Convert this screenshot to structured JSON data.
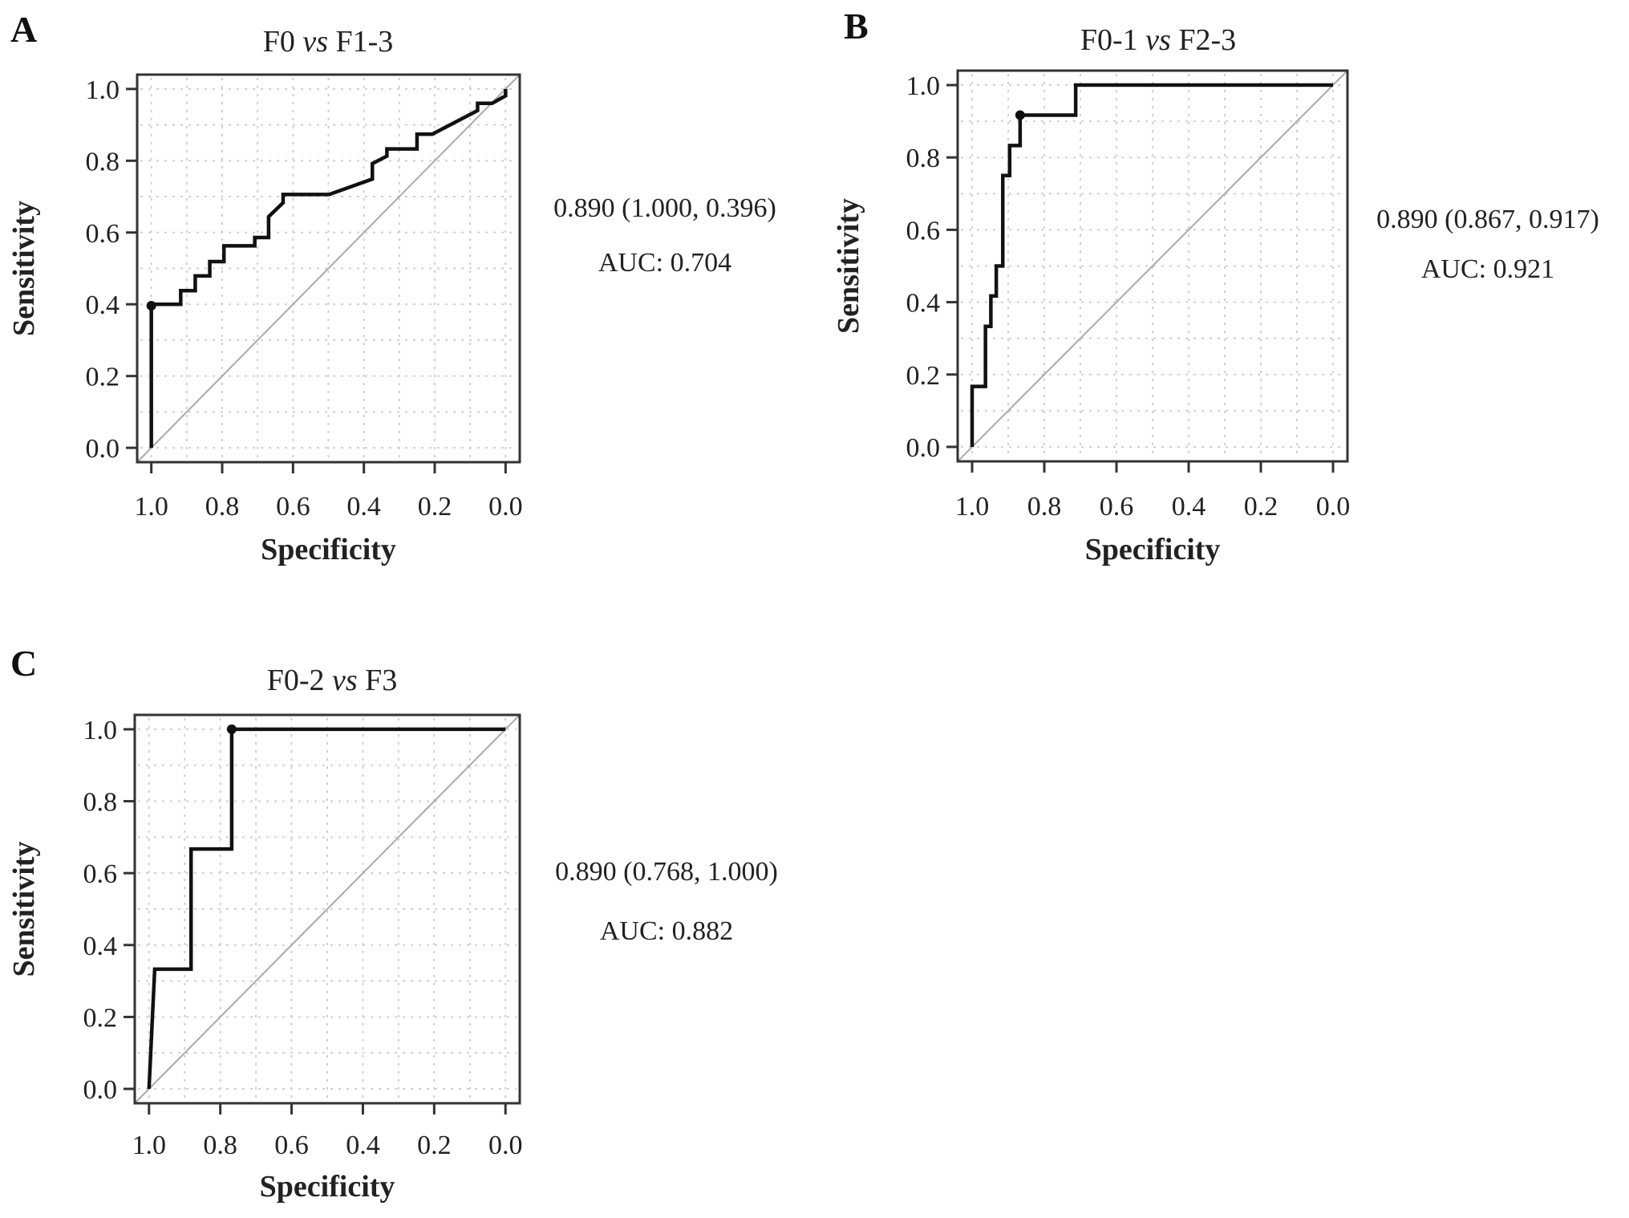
{
  "chart_data": [
    {
      "type": "line",
      "panel_label": "A",
      "title_parts": [
        "F0 ",
        "vs",
        " F1-3"
      ],
      "xlabel": "Specificity",
      "ylabel": "Sensitivity",
      "xlim": [
        1.04,
        -0.04
      ],
      "ylim": [
        -0.04,
        1.04
      ],
      "x_reversed": true,
      "grid": true,
      "xticks": [
        "1.0",
        "0.8",
        "0.6",
        "0.4",
        "0.2",
        "0.0"
      ],
      "yticks": [
        "0.0",
        "0.2",
        "0.4",
        "0.6",
        "0.8",
        "1.0"
      ],
      "threshold_label": "0.890 (1.000, 0.396)",
      "auc_label": "AUC: 0.704",
      "threshold_point": {
        "specificity": 1.0,
        "sensitivity": 0.396
      },
      "curve_color": "#111111",
      "reference_color": "#aaaaaa",
      "specificity": [
        1.0,
        1.0,
        0.917,
        0.917,
        0.876,
        0.876,
        0.835,
        0.835,
        0.795,
        0.795,
        0.708,
        0.708,
        0.669,
        0.669,
        0.628,
        0.628,
        0.498,
        0.376,
        0.376,
        0.335,
        0.335,
        0.25,
        0.25,
        0.207,
        0.079,
        0.079,
        0.038,
        0.0,
        0.0
      ],
      "sensitivity": [
        0.0,
        0.4,
        0.4,
        0.438,
        0.438,
        0.479,
        0.479,
        0.519,
        0.519,
        0.563,
        0.563,
        0.586,
        0.586,
        0.644,
        0.683,
        0.706,
        0.706,
        0.749,
        0.792,
        0.813,
        0.833,
        0.833,
        0.874,
        0.874,
        0.94,
        0.96,
        0.96,
        0.981,
        1.0
      ]
    },
    {
      "type": "line",
      "panel_label": "B",
      "title_parts": [
        "F0-1 ",
        "vs",
        " F2-3"
      ],
      "xlabel": "Specificity",
      "ylabel": "Sensitivity",
      "xlim": [
        1.04,
        -0.04
      ],
      "ylim": [
        -0.04,
        1.04
      ],
      "x_reversed": true,
      "grid": true,
      "xticks": [
        "1.0",
        "0.8",
        "0.6",
        "0.4",
        "0.2",
        "0.0"
      ],
      "yticks": [
        "0.0",
        "0.2",
        "0.4",
        "0.6",
        "0.8",
        "1.0"
      ],
      "threshold_label": "0.890 (0.867, 0.917)",
      "auc_label": "AUC: 0.921",
      "threshold_point": {
        "specificity": 0.867,
        "sensitivity": 0.917
      },
      "curve_color": "#111111",
      "reference_color": "#aaaaaa",
      "specificity": [
        1.0,
        1.0,
        0.963,
        0.963,
        0.948,
        0.948,
        0.933,
        0.933,
        0.915,
        0.915,
        0.896,
        0.896,
        0.867,
        0.867,
        0.713,
        0.713,
        0.0
      ],
      "sensitivity": [
        0.0,
        0.167,
        0.167,
        0.333,
        0.333,
        0.417,
        0.417,
        0.5,
        0.5,
        0.75,
        0.75,
        0.833,
        0.833,
        0.917,
        0.917,
        1.0,
        1.0
      ]
    },
    {
      "type": "line",
      "panel_label": "C",
      "title_parts": [
        "F0-2 ",
        "vs",
        " F3"
      ],
      "xlabel": "Specificity",
      "ylabel": "Sensitivity",
      "xlim": [
        1.04,
        -0.04
      ],
      "ylim": [
        -0.04,
        1.04
      ],
      "x_reversed": true,
      "grid": true,
      "xticks": [
        "1.0",
        "0.8",
        "0.6",
        "0.4",
        "0.2",
        "0.0"
      ],
      "yticks": [
        "0.0",
        "0.2",
        "0.4",
        "0.6",
        "0.8",
        "1.0"
      ],
      "threshold_label": "0.890 (0.768, 1.000)",
      "auc_label": "AUC: 0.882",
      "threshold_point": {
        "specificity": 0.768,
        "sensitivity": 1.0
      },
      "curve_color": "#111111",
      "reference_color": "#aaaaaa",
      "specificity": [
        1.0,
        0.984,
        0.882,
        0.882,
        0.768,
        0.768,
        0.0
      ],
      "sensitivity": [
        0.0,
        0.333,
        0.333,
        0.667,
        0.667,
        1.0,
        1.0
      ]
    }
  ]
}
